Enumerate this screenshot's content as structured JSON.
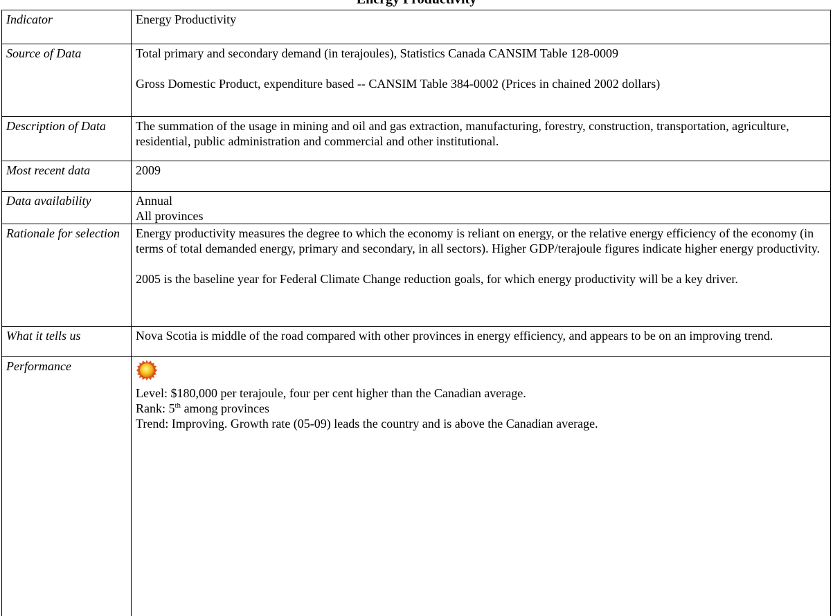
{
  "title": "Energy Productivity",
  "rows": [
    {
      "label": "Indicator",
      "paragraphs": [
        "Energy Productivity"
      ]
    },
    {
      "label": "Source of Data",
      "paragraphs": [
        "Total primary and secondary demand (in terajoules), Statistics Canada CANSIM Table 128-0009",
        "Gross Domestic Product, expenditure based -- CANSIM Table 384-0002 (Prices in chained 2002 dollars)"
      ]
    },
    {
      "label": "Description of Data",
      "paragraphs": [
        "The summation of the usage in mining and oil and gas extraction, manufacturing, forestry, construction, transportation, agriculture, residential, public administration and commercial and other institutional."
      ]
    },
    {
      "label": "Most recent data",
      "paragraphs": [
        "2009"
      ]
    },
    {
      "label": "Data availability",
      "lines": [
        "Annual",
        "All provinces"
      ]
    },
    {
      "label": "Rationale for selection",
      "paragraphs": [
        "Energy productivity measures the degree to which the economy is reliant on energy, or the relative energy efficiency of the economy (in terms of total demanded energy, primary and secondary, in all sectors). Higher GDP/terajoule figures indicate higher energy productivity.",
        "2005 is the baseline year for Federal Climate Change reduction goals, for which energy productivity will be a key driver."
      ]
    },
    {
      "label": "What it tells us",
      "paragraphs": [
        "Nova Scotia is middle of the road compared with other provinces in energy efficiency, and appears to be on an improving trend."
      ]
    },
    {
      "label": "Performance",
      "level": "Level: $180,000 per terajoule, four per cent higher than the Canadian average.",
      "rank": [
        "Rank: 5",
        "th",
        " among provinces"
      ],
      "trend": "Trend: Improving. Growth rate (05-09) leads the country and is above the Canadian average."
    }
  ]
}
